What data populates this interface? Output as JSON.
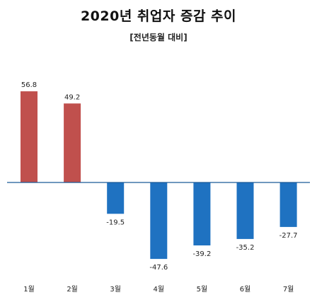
{
  "chart_data": {
    "type": "bar",
    "title": "2020년 취업자 증감 추이",
    "subtitle": "[전년동월 대비]",
    "categories": [
      "1월",
      "2월",
      "3월",
      "4월",
      "5월",
      "6월",
      "7월"
    ],
    "values": [
      56.8,
      49.2,
      -19.5,
      -47.6,
      -39.2,
      -35.2,
      -27.7
    ],
    "value_labels": [
      "56.8",
      "49.2",
      "-19.5",
      "-47.6",
      "-39.2",
      "-35.2",
      "-27.7"
    ],
    "ylim": [
      -50,
      60
    ],
    "grid": false,
    "colors": {
      "positive": "#c0504d",
      "negative": "#1f72c1",
      "baseline": "#1a5a96"
    }
  }
}
